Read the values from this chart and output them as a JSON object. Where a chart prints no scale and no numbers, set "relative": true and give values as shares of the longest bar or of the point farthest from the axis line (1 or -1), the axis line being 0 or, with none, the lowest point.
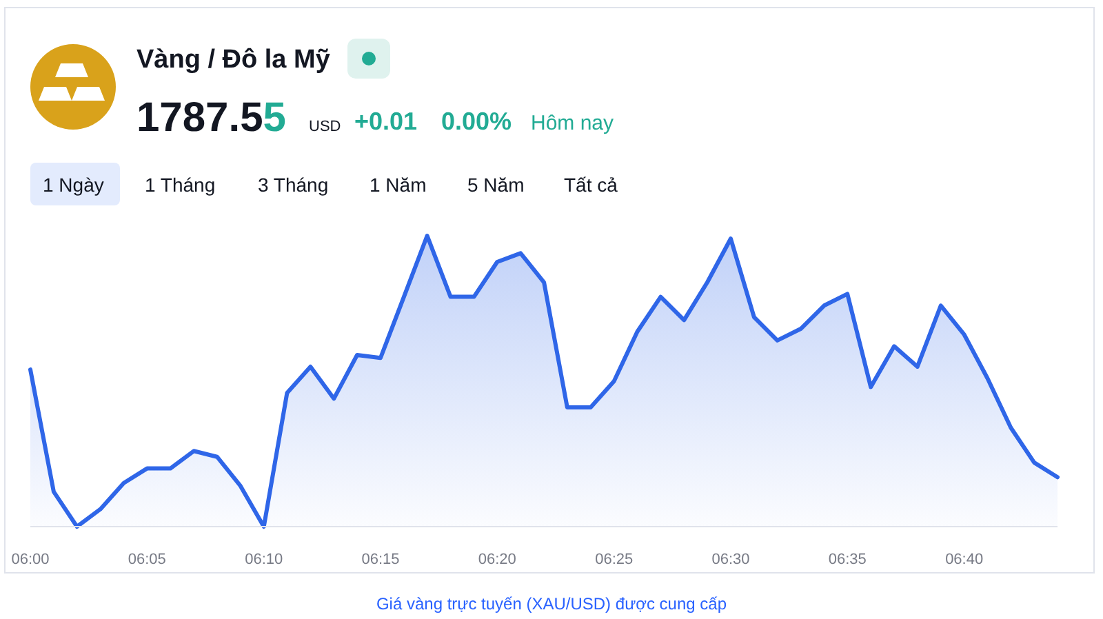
{
  "chart_data": {
    "type": "area",
    "title": "Vàng / Đô la Mỹ",
    "relative": true,
    "annotations": [
      "1787.55",
      "USD",
      "+0.01",
      "0.00%",
      "Hôm nay",
      "1 Ngày",
      "1 Tháng",
      "3 Tháng",
      "1 Năm",
      "5 Năm",
      "Tất cả",
      "Giá vàng trực tuyến (XAU/USD) được cung cấp"
    ],
    "x": [
      6,
      6.0167,
      6.0333,
      6.05,
      6.0667,
      6.0833,
      6.1,
      6.1167,
      6.1333,
      6.15,
      6.1667,
      6.1833,
      6.2,
      6.2167,
      6.2333,
      6.25,
      6.2667,
      6.2833,
      6.3,
      6.3167,
      6.3333,
      6.35,
      6.3667,
      6.3833,
      6.4,
      6.4167,
      6.4333,
      6.45,
      6.4667,
      6.4833,
      6.5,
      6.5167,
      6.5333,
      6.55,
      6.5667,
      6.5833,
      6.6,
      6.6167,
      6.6333,
      6.65,
      6.6667,
      6.6833,
      6.7,
      6.7167,
      6.7333
    ],
    "xlim": [
      6,
      6.7333
    ],
    "xticks": [
      {
        "value": 6,
        "label": "06:00"
      },
      {
        "value": 6.0833,
        "label": "06:05"
      },
      {
        "value": 6.1667,
        "label": "06:10"
      },
      {
        "value": 6.25,
        "label": "06:15"
      },
      {
        "value": 6.3333,
        "label": "06:20"
      },
      {
        "value": 6.4167,
        "label": "06:25"
      },
      {
        "value": 6.5,
        "label": "06:30"
      },
      {
        "value": 6.5833,
        "label": "06:35"
      },
      {
        "value": 6.6667,
        "label": "06:40"
      }
    ],
    "series": [
      {
        "color": "#2f66e8",
        "values": [
          0.54,
          0.12,
          0,
          0.06,
          0.15,
          0.2,
          0.2,
          0.26,
          0.24,
          0.14,
          0,
          0.46,
          0.55,
          0.44,
          0.59,
          0.58,
          0.79,
          1,
          0.79,
          0.79,
          0.91,
          0.94,
          0.84,
          0.41,
          0.41,
          0.5,
          0.67,
          0.79,
          0.71,
          0.84,
          0.99,
          0.72,
          0.64,
          0.68,
          0.76,
          0.8,
          0.48,
          0.62,
          0.55,
          0.76,
          0.66,
          0.51,
          0.34,
          0.22,
          0.17
        ]
      }
    ]
  }
}
